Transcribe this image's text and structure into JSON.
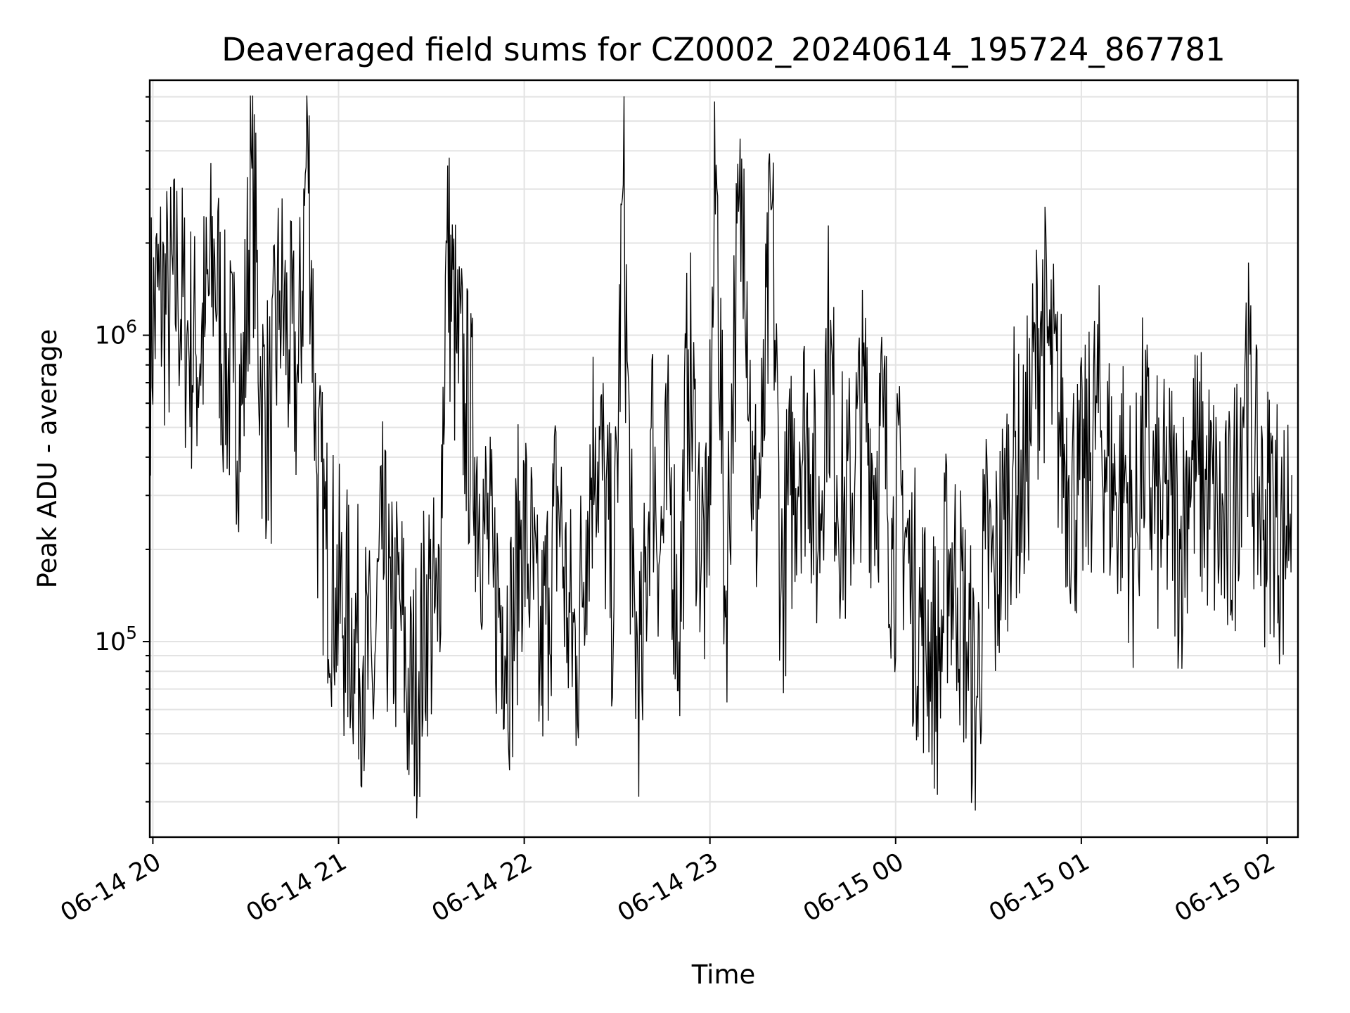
{
  "chart_data": {
    "type": "line",
    "title": "Deaveraged field sums for CZ0002_20240614_195724_867781",
    "xlabel": "Time",
    "ylabel": "Peak ADU - average",
    "yscale": "log",
    "ylim": [
      23000,
      6800000
    ],
    "xlim": [
      "2024-06-14 19:59",
      "2024-06-15 02:10"
    ],
    "grid": true,
    "x_ticks": [
      "06-14 20",
      "06-14 21",
      "06-14 22",
      "06-14 23",
      "06-15 00",
      "06-15 01",
      "06-15 02"
    ],
    "y_ticks": [
      {
        "base": "10",
        "exp": "5",
        "value": 100000
      },
      {
        "base": "10",
        "exp": "6",
        "value": 1000000
      }
    ],
    "line_color": "#000000",
    "series": [
      {
        "x": [
          "2024-06-14 19:59",
          "2024-06-14 20:02",
          "2024-06-14 20:05",
          "2024-06-14 20:08",
          "2024-06-14 20:11",
          "2024-06-14 20:14",
          "2024-06-14 20:17",
          "2024-06-14 20:20",
          "2024-06-14 20:23",
          "2024-06-14 20:26",
          "2024-06-14 20:29",
          "2024-06-14 20:32",
          "2024-06-14 20:35",
          "2024-06-14 20:38",
          "2024-06-14 20:41",
          "2024-06-14 20:44",
          "2024-06-14 20:47",
          "2024-06-14 20:50",
          "2024-06-14 20:53",
          "2024-06-14 20:56",
          "2024-06-14 20:59",
          "2024-06-14 21:02",
          "2024-06-14 21:05",
          "2024-06-14 21:08",
          "2024-06-14 21:11",
          "2024-06-14 21:14",
          "2024-06-14 21:17",
          "2024-06-14 21:20",
          "2024-06-14 21:23",
          "2024-06-14 21:26",
          "2024-06-14 21:29",
          "2024-06-14 21:32",
          "2024-06-14 21:35",
          "2024-06-14 21:38",
          "2024-06-14 21:41",
          "2024-06-14 21:44",
          "2024-06-14 21:47",
          "2024-06-14 21:50",
          "2024-06-14 21:53",
          "2024-06-14 21:56",
          "2024-06-14 21:59",
          "2024-06-14 22:02",
          "2024-06-14 22:05",
          "2024-06-14 22:08",
          "2024-06-14 22:11",
          "2024-06-14 22:14",
          "2024-06-14 22:17",
          "2024-06-14 22:20",
          "2024-06-14 22:23",
          "2024-06-14 22:26",
          "2024-06-14 22:29",
          "2024-06-14 22:32",
          "2024-06-14 22:35",
          "2024-06-14 22:38",
          "2024-06-14 22:41",
          "2024-06-14 22:44",
          "2024-06-14 22:47",
          "2024-06-14 22:50",
          "2024-06-14 22:53",
          "2024-06-14 22:56",
          "2024-06-14 22:59",
          "2024-06-14 23:02",
          "2024-06-14 23:05",
          "2024-06-14 23:08",
          "2024-06-14 23:11",
          "2024-06-14 23:14",
          "2024-06-14 23:17",
          "2024-06-14 23:20",
          "2024-06-14 23:23",
          "2024-06-14 23:26",
          "2024-06-14 23:29",
          "2024-06-14 23:32",
          "2024-06-14 23:35",
          "2024-06-14 23:38",
          "2024-06-14 23:41",
          "2024-06-14 23:44",
          "2024-06-14 23:47",
          "2024-06-14 23:50",
          "2024-06-14 23:53",
          "2024-06-14 23:56",
          "2024-06-14 23:59",
          "2024-06-15 00:02",
          "2024-06-15 00:05",
          "2024-06-15 00:08",
          "2024-06-15 00:11",
          "2024-06-15 00:14",
          "2024-06-15 00:17",
          "2024-06-15 00:20",
          "2024-06-15 00:23",
          "2024-06-15 00:26",
          "2024-06-15 00:29",
          "2024-06-15 00:32",
          "2024-06-15 00:35",
          "2024-06-15 00:38",
          "2024-06-15 00:41",
          "2024-06-15 00:44",
          "2024-06-15 00:47",
          "2024-06-15 00:50",
          "2024-06-15 00:53",
          "2024-06-15 00:56",
          "2024-06-15 00:59",
          "2024-06-15 01:02",
          "2024-06-15 01:05",
          "2024-06-15 01:08",
          "2024-06-15 01:11",
          "2024-06-15 01:14",
          "2024-06-15 01:17",
          "2024-06-15 01:20",
          "2024-06-15 01:23",
          "2024-06-15 01:26",
          "2024-06-15 01:29",
          "2024-06-15 01:32",
          "2024-06-15 01:35",
          "2024-06-15 01:38",
          "2024-06-15 01:41",
          "2024-06-15 01:44",
          "2024-06-15 01:47",
          "2024-06-15 01:50",
          "2024-06-15 01:53",
          "2024-06-15 01:56",
          "2024-06-15 01:59",
          "2024-06-15 02:02",
          "2024-06-15 02:05",
          "2024-06-15 02:08"
        ],
        "values": [
          950000,
          1400000,
          1200000,
          1500000,
          1000000,
          850000,
          1100000,
          1800000,
          800000,
          700000,
          600000,
          3500000,
          650000,
          500000,
          1400000,
          900000,
          700000,
          4800000,
          350000,
          200000,
          150000,
          120000,
          110000,
          90000,
          70000,
          200000,
          110000,
          130000,
          60000,
          80000,
          140000,
          100000,
          2000000,
          900000,
          600000,
          400000,
          250000,
          150000,
          130000,
          100000,
          250000,
          180000,
          80000,
          150000,
          300000,
          120000,
          90000,
          250000,
          500000,
          300000,
          130000,
          3100000,
          120000,
          70000,
          500000,
          200000,
          350000,
          100000,
          900000,
          300000,
          150000,
          3600000,
          120000,
          1100000,
          3500000,
          250000,
          400000,
          2600000,
          150000,
          300000,
          450000,
          500000,
          200000,
          1000000,
          350000,
          250000,
          400000,
          600000,
          350000,
          500000,
          200000,
          300000,
          150000,
          120000,
          100000,
          80000,
          200000,
          150000,
          100000,
          60000,
          200000,
          150000,
          250000,
          400000,
          300000,
          600000,
          1200000,
          800000,
          500000,
          350000,
          300000,
          350000,
          600000,
          400000,
          300000,
          350000,
          200000,
          450000,
          300000,
          250000,
          300000,
          200000,
          400000,
          350000,
          300000,
          250000,
          200000,
          300000,
          900000,
          350000,
          250000,
          300000,
          200000,
          350000
        ],
        "note_pairs_omitted": false
      }
    ]
  }
}
